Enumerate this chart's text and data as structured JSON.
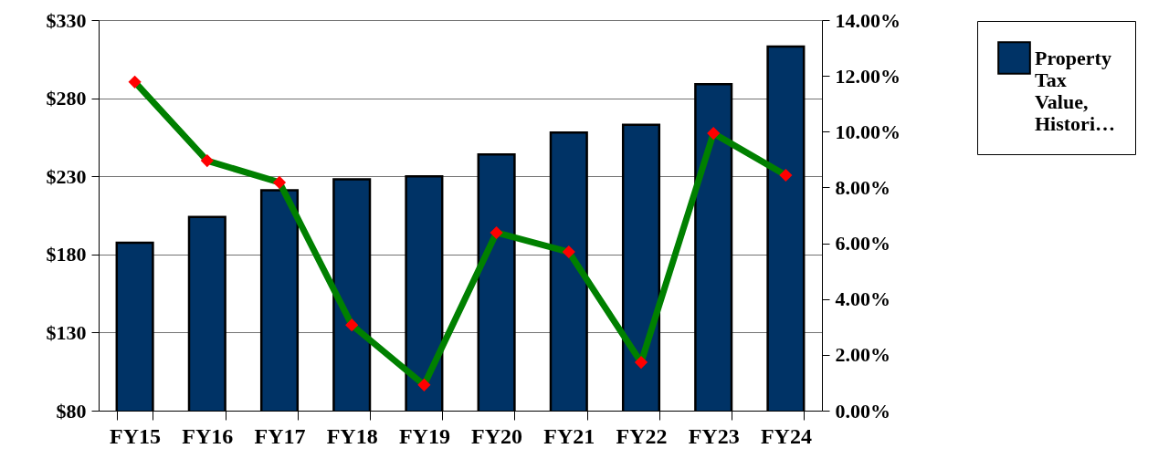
{
  "chart_data": {
    "type": "bar",
    "categories": [
      "FY15",
      "FY16",
      "FY17",
      "FY18",
      "FY19",
      "FY20",
      "FY21",
      "FY22",
      "FY23",
      "FY24"
    ],
    "series": [
      {
        "name": "Property Tax Value, Histori…",
        "color": "#003366",
        "values": [
          187.5,
          204,
          221,
          228,
          230,
          244,
          258,
          263,
          289,
          313
        ]
      },
      {
        "type": "line",
        "axis": "y2",
        "color": "#008000",
        "colors": [
          "#ff0000",
          "#ff0000",
          "#ff0000",
          "#ff0000",
          "#ff0000",
          "#ff0000",
          "#ff0000",
          "#ff0000",
          "#ff0000",
          "#ff0000"
        ],
        "marker": "diamond",
        "values": [
          11.78,
          8.96,
          8.18,
          3.07,
          0.92,
          6.38,
          5.69,
          1.73,
          9.94,
          8.44
        ]
      }
    ],
    "ylim": [
      80,
      330
    ],
    "yticks": [
      {
        "value": 80,
        "label": "$80"
      },
      {
        "value": 130,
        "label": "$130"
      },
      {
        "value": 180,
        "label": "$180"
      },
      {
        "value": 230,
        "label": "$230"
      },
      {
        "value": 280,
        "label": "$280"
      },
      {
        "value": 330,
        "label": "$330"
      }
    ],
    "y2lim": [
      0,
      14
    ],
    "y2ticks": [
      {
        "value": 0,
        "label": "0.00%"
      },
      {
        "value": 2,
        "label": "2.00%"
      },
      {
        "value": 4,
        "label": "4.00%"
      },
      {
        "value": 6,
        "label": "6.00%"
      },
      {
        "value": 8,
        "label": "8.00%"
      },
      {
        "value": 10,
        "label": "10.00%"
      },
      {
        "value": 12,
        "label": "12.00%"
      },
      {
        "value": 14,
        "label": "14.00%"
      }
    ],
    "grid": "y",
    "legend": "top right"
  }
}
